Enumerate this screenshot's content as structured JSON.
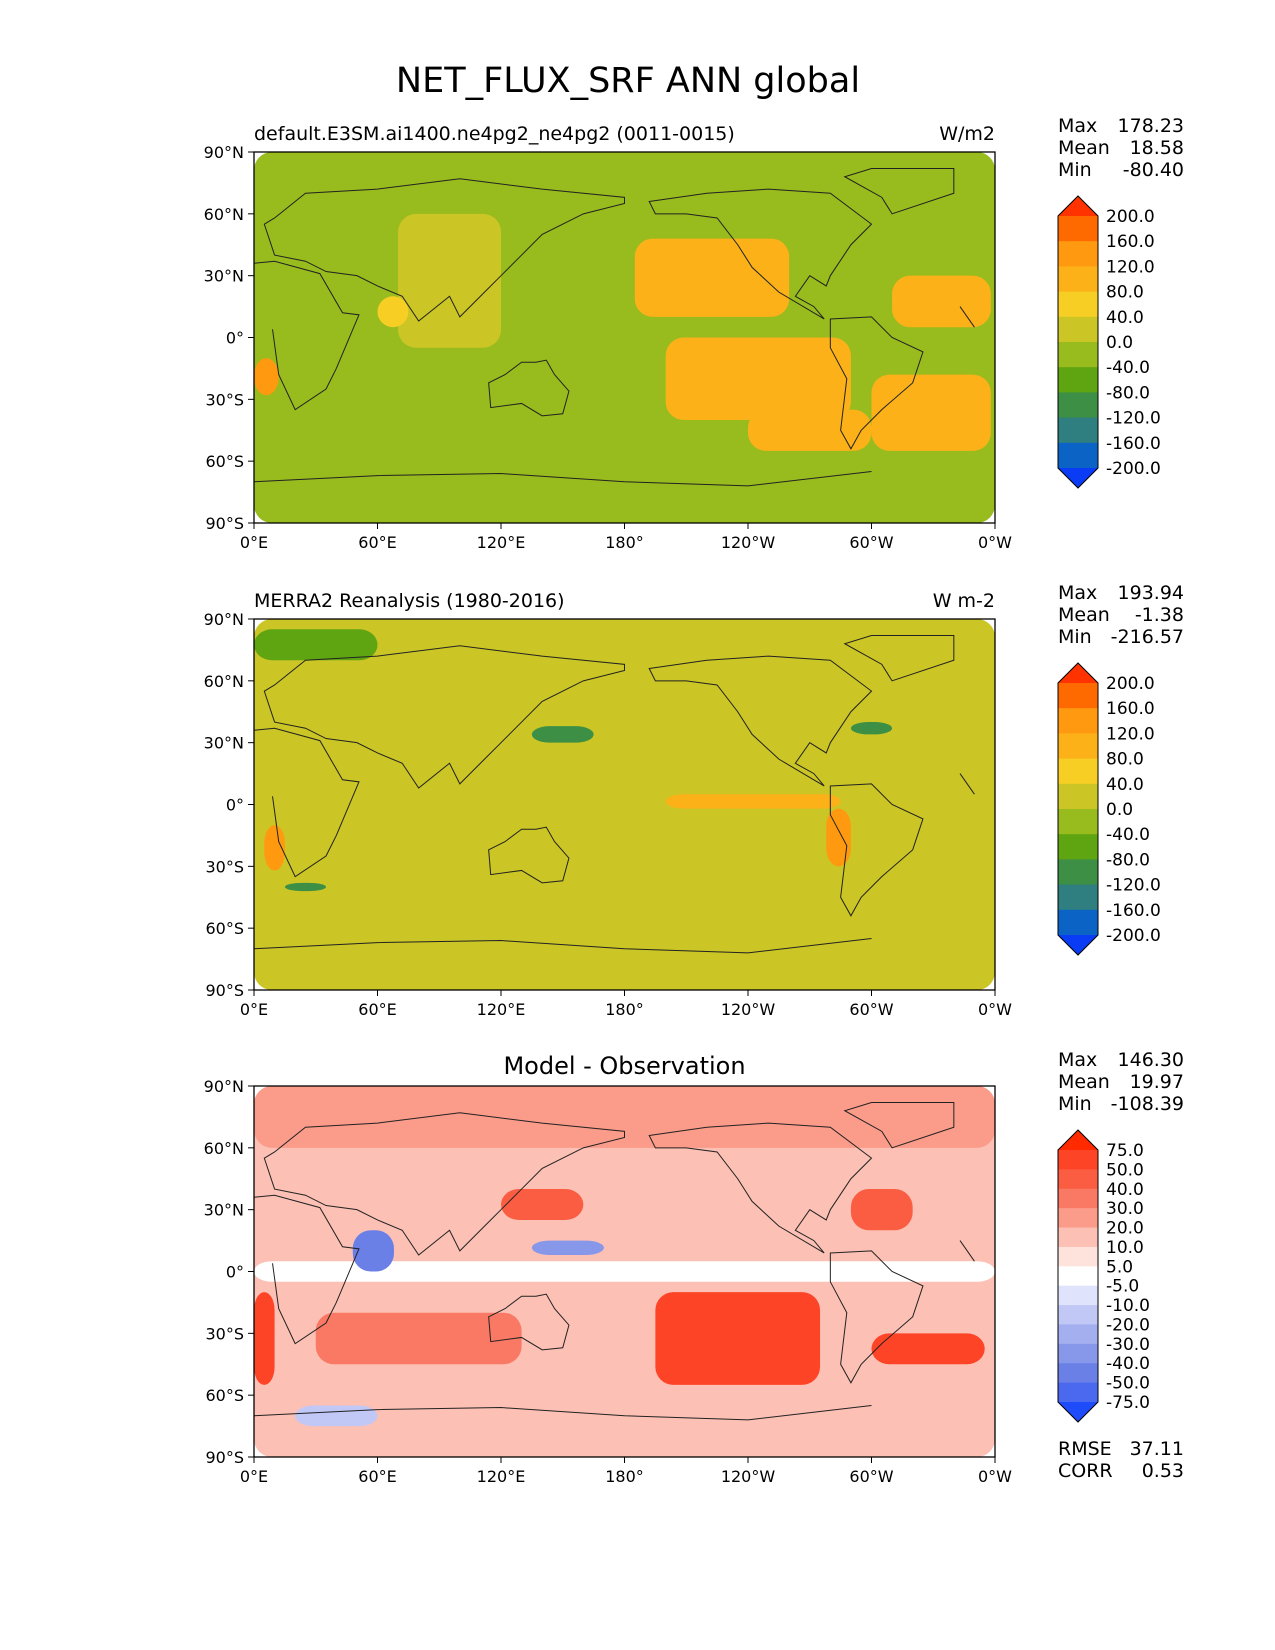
{
  "figure": {
    "title": "NET_FLUX_SRF ANN global"
  },
  "axes": {
    "lat_ticks": [
      "90°N",
      "60°N",
      "30°N",
      "0°",
      "30°S",
      "60°S",
      "90°S"
    ],
    "lon_ticks": [
      "0°E",
      "60°E",
      "120°E",
      "180°",
      "120°W",
      "60°W",
      "0°W"
    ]
  },
  "panels": [
    {
      "id": "test",
      "left_title": "default.E3SM.ai1400.ne4pg2_ne4pg2 (0011-0015)",
      "center_title": "",
      "units": "W/m2",
      "stats": [
        {
          "label": "Max",
          "value": "178.23"
        },
        {
          "label": "Mean",
          "value": "18.58"
        },
        {
          "label": "Min",
          "value": "-80.40"
        }
      ],
      "colorbar_labels": [
        "200.0",
        "160.0",
        "120.0",
        "80.0",
        "40.0",
        "0.0",
        "-40.0",
        "-80.0",
        "-120.0",
        "-160.0",
        "-200.0"
      ],
      "colorbar_colors": [
        "#ff3300",
        "#ff6a00",
        "#ff9a10",
        "#fcb119",
        "#f7cf24",
        "#cbc525",
        "#98bb1e",
        "#5fa512",
        "#3c8f45",
        "#2f7f80",
        "#0b64c5",
        "#0a3cf6"
      ],
      "regions": [
        {
          "lat": [
            -10,
            -28
          ],
          "lon": [
            0,
            12
          ],
          "value": 120
        },
        {
          "lat": [
            48,
            10
          ],
          "lon": [
            185,
            260
          ],
          "value": 80
        },
        {
          "lat": [
            0,
            -40
          ],
          "lon": [
            200,
            290
          ],
          "value": 80
        },
        {
          "lat": [
            -8,
            -25
          ],
          "lon": [
            258,
            280
          ],
          "value": 120
        },
        {
          "lat": [
            -35,
            -55
          ],
          "lon": [
            240,
            300
          ],
          "value": 80
        },
        {
          "lat": [
            -18,
            -55
          ],
          "lon": [
            300,
            358
          ],
          "value": 80
        },
        {
          "lat": [
            30,
            5
          ],
          "lon": [
            310,
            358
          ],
          "value": 80
        },
        {
          "lat": [
            20,
            5
          ],
          "lon": [
            60,
            75
          ],
          "value": 40
        },
        {
          "lat": [
            35,
            20
          ],
          "lon": [
            120,
            170
          ],
          "value": -40
        },
        {
          "lat": [
            10,
            -20
          ],
          "lon": [
            25,
            45
          ],
          "value": -40
        },
        {
          "lat": [
            60,
            -5
          ],
          "lon": [
            70,
            120
          ],
          "value": 0
        },
        {
          "lat": [
            90,
            -90
          ],
          "lon": [
            0,
            360
          ],
          "value": -10
        }
      ]
    },
    {
      "id": "ref",
      "left_title": "MERRA2 Reanalysis (1980-2016)",
      "center_title": "",
      "units": "W m-2",
      "stats": [
        {
          "label": "Max",
          "value": "193.94"
        },
        {
          "label": "Mean",
          "value": "-1.38"
        },
        {
          "label": "Min",
          "value": "-216.57"
        }
      ],
      "colorbar_labels": [
        "200.0",
        "160.0",
        "120.0",
        "80.0",
        "40.0",
        "0.0",
        "-40.0",
        "-80.0",
        "-120.0",
        "-160.0",
        "-200.0"
      ],
      "colorbar_colors": [
        "#ff3300",
        "#ff6a00",
        "#ff9a10",
        "#fcb119",
        "#f7cf24",
        "#cbc525",
        "#98bb1e",
        "#5fa512",
        "#3c8f45",
        "#2f7f80",
        "#0b64c5",
        "#0a3cf6"
      ],
      "regions": [
        {
          "lat": [
            5,
            -2
          ],
          "lon": [
            200,
            285
          ],
          "value": 80
        },
        {
          "lat": [
            -2,
            -30
          ],
          "lon": [
            278,
            290
          ],
          "value": 120
        },
        {
          "lat": [
            -10,
            -32
          ],
          "lon": [
            5,
            15
          ],
          "value": 120
        },
        {
          "lat": [
            40,
            34
          ],
          "lon": [
            290,
            310
          ],
          "value": -120
        },
        {
          "lat": [
            38,
            30
          ],
          "lon": [
            135,
            165
          ],
          "value": -120
        },
        {
          "lat": [
            -38,
            -42
          ],
          "lon": [
            15,
            35
          ],
          "value": -120
        },
        {
          "lat": [
            85,
            70
          ],
          "lon": [
            0,
            60
          ],
          "value": -60
        },
        {
          "lat": [
            90,
            -90
          ],
          "lon": [
            0,
            360
          ],
          "value": 10
        }
      ]
    },
    {
      "id": "diff",
      "left_title": "",
      "center_title": "Model - Observation",
      "units": "",
      "stats": [
        {
          "label": "Max",
          "value": "146.30"
        },
        {
          "label": "Mean",
          "value": "19.97"
        },
        {
          "label": "Min",
          "value": "-108.39"
        }
      ],
      "bottom_stats": [
        {
          "label": "RMSE",
          "value": "37.11"
        },
        {
          "label": "CORR",
          "value": "0.53"
        }
      ],
      "colorbar_labels": [
        "75.0",
        "50.0",
        "40.0",
        "30.0",
        "20.0",
        "10.0",
        "5.0",
        "-5.0",
        "-10.0",
        "-20.0",
        "-30.0",
        "-40.0",
        "-50.0",
        "-75.0"
      ],
      "colorbar_colors": [
        "#ff2a00",
        "#fe4426",
        "#fb5d43",
        "#fa7964",
        "#fb9b8a",
        "#fcc0b4",
        "#fde3dc",
        "#ffffff",
        "#dfe3fb",
        "#c1c8f6",
        "#a3afef",
        "#8797ea",
        "#6a80e7",
        "#4a69ef",
        "#1f4cfb"
      ],
      "regions": [
        {
          "lat": [
            -10,
            -55
          ],
          "lon": [
            195,
            275
          ],
          "value": 60
        },
        {
          "lat": [
            -30,
            -45
          ],
          "lon": [
            300,
            355
          ],
          "value": 60
        },
        {
          "lat": [
            -10,
            -55
          ],
          "lon": [
            0,
            10
          ],
          "value": 50
        },
        {
          "lat": [
            20,
            0
          ],
          "lon": [
            48,
            68
          ],
          "value": -50
        },
        {
          "lat": [
            15,
            8
          ],
          "lon": [
            135,
            170
          ],
          "value": -40
        },
        {
          "lat": [
            40,
            20
          ],
          "lon": [
            290,
            320
          ],
          "value": 40
        },
        {
          "lat": [
            40,
            25
          ],
          "lon": [
            120,
            160
          ],
          "value": 40
        },
        {
          "lat": [
            -20,
            -45
          ],
          "lon": [
            30,
            130
          ],
          "value": 30
        },
        {
          "lat": [
            90,
            60
          ],
          "lon": [
            0,
            360
          ],
          "value": 20
        },
        {
          "lat": [
            -65,
            -75
          ],
          "lon": [
            20,
            60
          ],
          "value": -15
        },
        {
          "lat": [
            5,
            -5
          ],
          "lon": [
            0,
            360
          ],
          "value": 0
        },
        {
          "lat": [
            90,
            -90
          ],
          "lon": [
            0,
            360
          ],
          "value": 12
        }
      ]
    }
  ]
}
